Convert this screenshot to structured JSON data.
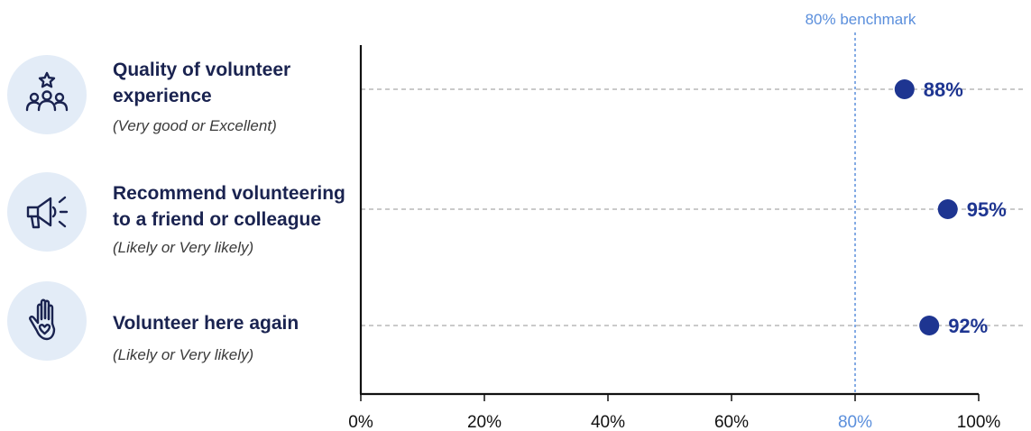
{
  "chart_data": {
    "type": "scatter",
    "categories": [
      "Quality of volunteer experience",
      "Recommend volunteering to a friend or colleague",
      "Volunteer here again"
    ],
    "values": [
      88,
      95,
      92
    ],
    "value_labels": [
      "88%",
      "95%",
      "92%"
    ],
    "xlim": [
      0,
      100
    ],
    "xticks": [
      0,
      20,
      40,
      60,
      80,
      100
    ],
    "xtick_labels": [
      "0%",
      "20%",
      "40%",
      "60%",
      "80%",
      "100%"
    ],
    "benchmark": {
      "value": 80,
      "label": "80% benchmark",
      "color": "#5b8fdc"
    },
    "marker_color": "#1e3591",
    "grid": false,
    "xlabel": "",
    "ylabel": ""
  },
  "rows": [
    {
      "title_lines": [
        "Quality of volunteer",
        "experience"
      ],
      "subtitle": "(Very good or Excellent)",
      "icon": "people-star-icon"
    },
    {
      "title_lines": [
        "Recommend volunteering",
        "to a friend or colleague"
      ],
      "subtitle": "(Likely or Very likely)",
      "icon": "megaphone-icon"
    },
    {
      "title_lines": [
        "Volunteer here again"
      ],
      "subtitle": "(Likely or Very likely)",
      "icon": "hand-heart-icon"
    }
  ],
  "colors": {
    "icon_background": "#e3ecf7",
    "icon_stroke": "#1a2350",
    "title_text": "#1a2350",
    "axis": "#111111",
    "guide_line": "#aaaaaa"
  }
}
